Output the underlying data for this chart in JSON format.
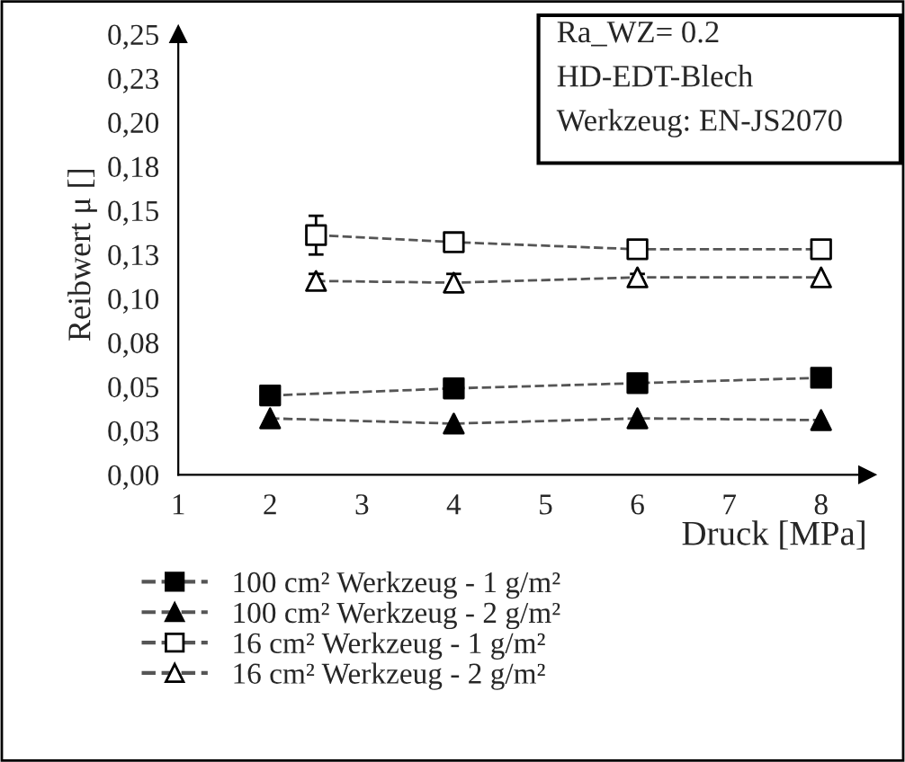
{
  "chart_data": {
    "type": "line",
    "xlabel": "Druck [MPa]",
    "ylabel": "Reibwert μ []",
    "annotations": [
      "Ra_WZ= 0.2",
      "HD-EDT-Blech",
      "Werkzeug: EN-JS2070"
    ],
    "xlim": [
      1,
      8.5
    ],
    "xticks": [
      1,
      2,
      3,
      4,
      5,
      6,
      7,
      8
    ],
    "ylim": [
      0,
      0.25
    ],
    "yticks": [
      {
        "value": 0,
        "label": "0,00"
      },
      {
        "value": 0.025,
        "label": "0,03"
      },
      {
        "value": 0.05,
        "label": "0,05"
      },
      {
        "value": 0.075,
        "label": "0,08"
      },
      {
        "value": 0.1,
        "label": "0,10"
      },
      {
        "value": 0.125,
        "label": "0,13"
      },
      {
        "value": 0.15,
        "label": "0,15"
      },
      {
        "value": 0.175,
        "label": "0,18"
      },
      {
        "value": 0.2,
        "label": "0,20"
      },
      {
        "value": 0.225,
        "label": "0,23"
      },
      {
        "value": 0.25,
        "label": "0,25"
      }
    ],
    "grid": false,
    "legend": "bottom",
    "line_style": "dashed",
    "series": [
      {
        "name": "100 cm² Werkzeug - 1 g/m²",
        "color": "#000000",
        "marker": "square",
        "x": [
          2,
          4,
          6,
          8
        ],
        "values": [
          0.045,
          0.049,
          0.052,
          0.055
        ]
      },
      {
        "name": "100 cm² Werkzeug - 2 g/m²",
        "color": "#000000",
        "marker": "triangle",
        "x": [
          2,
          4,
          6,
          8
        ],
        "values": [
          0.032,
          0.029,
          0.032,
          0.031
        ]
      },
      {
        "name": "16 cm² Werkzeug - 1 g/m²",
        "color": "#ffffff",
        "marker": "square",
        "x": [
          2.5,
          4,
          6,
          8
        ],
        "values": [
          0.136,
          0.132,
          0.128,
          0.128
        ],
        "errors": [
          0.011,
          null,
          null,
          null
        ]
      },
      {
        "name": "16 cm² Werkzeug - 2 g/m²",
        "color": "#ffffff",
        "marker": "triangle",
        "x": [
          2.5,
          4,
          6,
          8
        ],
        "values": [
          0.11,
          0.109,
          0.112,
          0.112
        ],
        "errors": [
          0.004,
          0.005,
          0.002,
          null
        ]
      }
    ]
  }
}
